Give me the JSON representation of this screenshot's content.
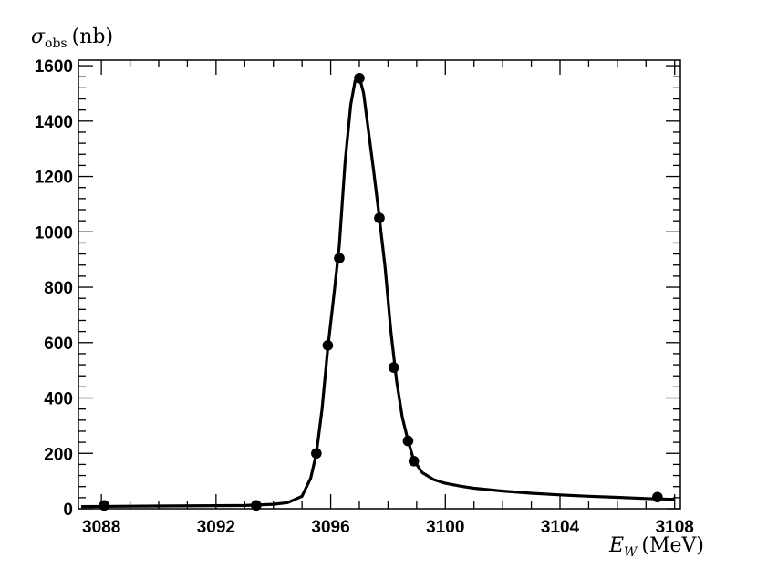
{
  "chart_data": {
    "type": "scatter",
    "ylabel": {
      "symbol": "σ",
      "subscript": "obs",
      "unit": "(nb)"
    },
    "xlabel": {
      "symbol": "E",
      "subscript": "W",
      "unit": "(MeV)"
    },
    "xlim": [
      3087.2,
      3108.2
    ],
    "ylim": [
      0,
      1620
    ],
    "x_ticks": [
      3088,
      3092,
      3096,
      3100,
      3104,
      3108
    ],
    "y_ticks": [
      0,
      200,
      400,
      600,
      800,
      1000,
      1200,
      1400,
      1600
    ],
    "grid": false,
    "legend": "none",
    "series": [
      {
        "kind": "points",
        "x": [
          3088.1,
          3093.4,
          3095.5,
          3095.9,
          3096.3,
          3097.0,
          3097.7,
          3098.2,
          3098.7,
          3098.9,
          3107.4
        ],
        "y": [
          12,
          12,
          200,
          590,
          905,
          1555,
          1050,
          510,
          245,
          172,
          42
        ]
      },
      {
        "kind": "fit-curve",
        "x": [
          3087.3,
          3090.0,
          3093.0,
          3094.0,
          3094.5,
          3095.0,
          3095.3,
          3095.5,
          3095.7,
          3095.9,
          3096.1,
          3096.3,
          3096.5,
          3096.7,
          3096.85,
          3097.0,
          3097.15,
          3097.3,
          3097.5,
          3097.7,
          3097.9,
          3098.1,
          3098.3,
          3098.5,
          3098.7,
          3098.9,
          3099.2,
          3099.6,
          3100.0,
          3100.5,
          3101.0,
          3102.0,
          3103.0,
          3104.0,
          3105.0,
          3106.0,
          3107.0,
          3108.0
        ],
        "y": [
          8,
          10,
          12,
          16,
          22,
          45,
          110,
          200,
          360,
          580,
          760,
          950,
          1250,
          1460,
          1545,
          1560,
          1500,
          1380,
          1220,
          1050,
          870,
          640,
          460,
          330,
          245,
          175,
          130,
          105,
          92,
          82,
          74,
          64,
          56,
          50,
          45,
          41,
          37,
          34
        ]
      }
    ]
  }
}
